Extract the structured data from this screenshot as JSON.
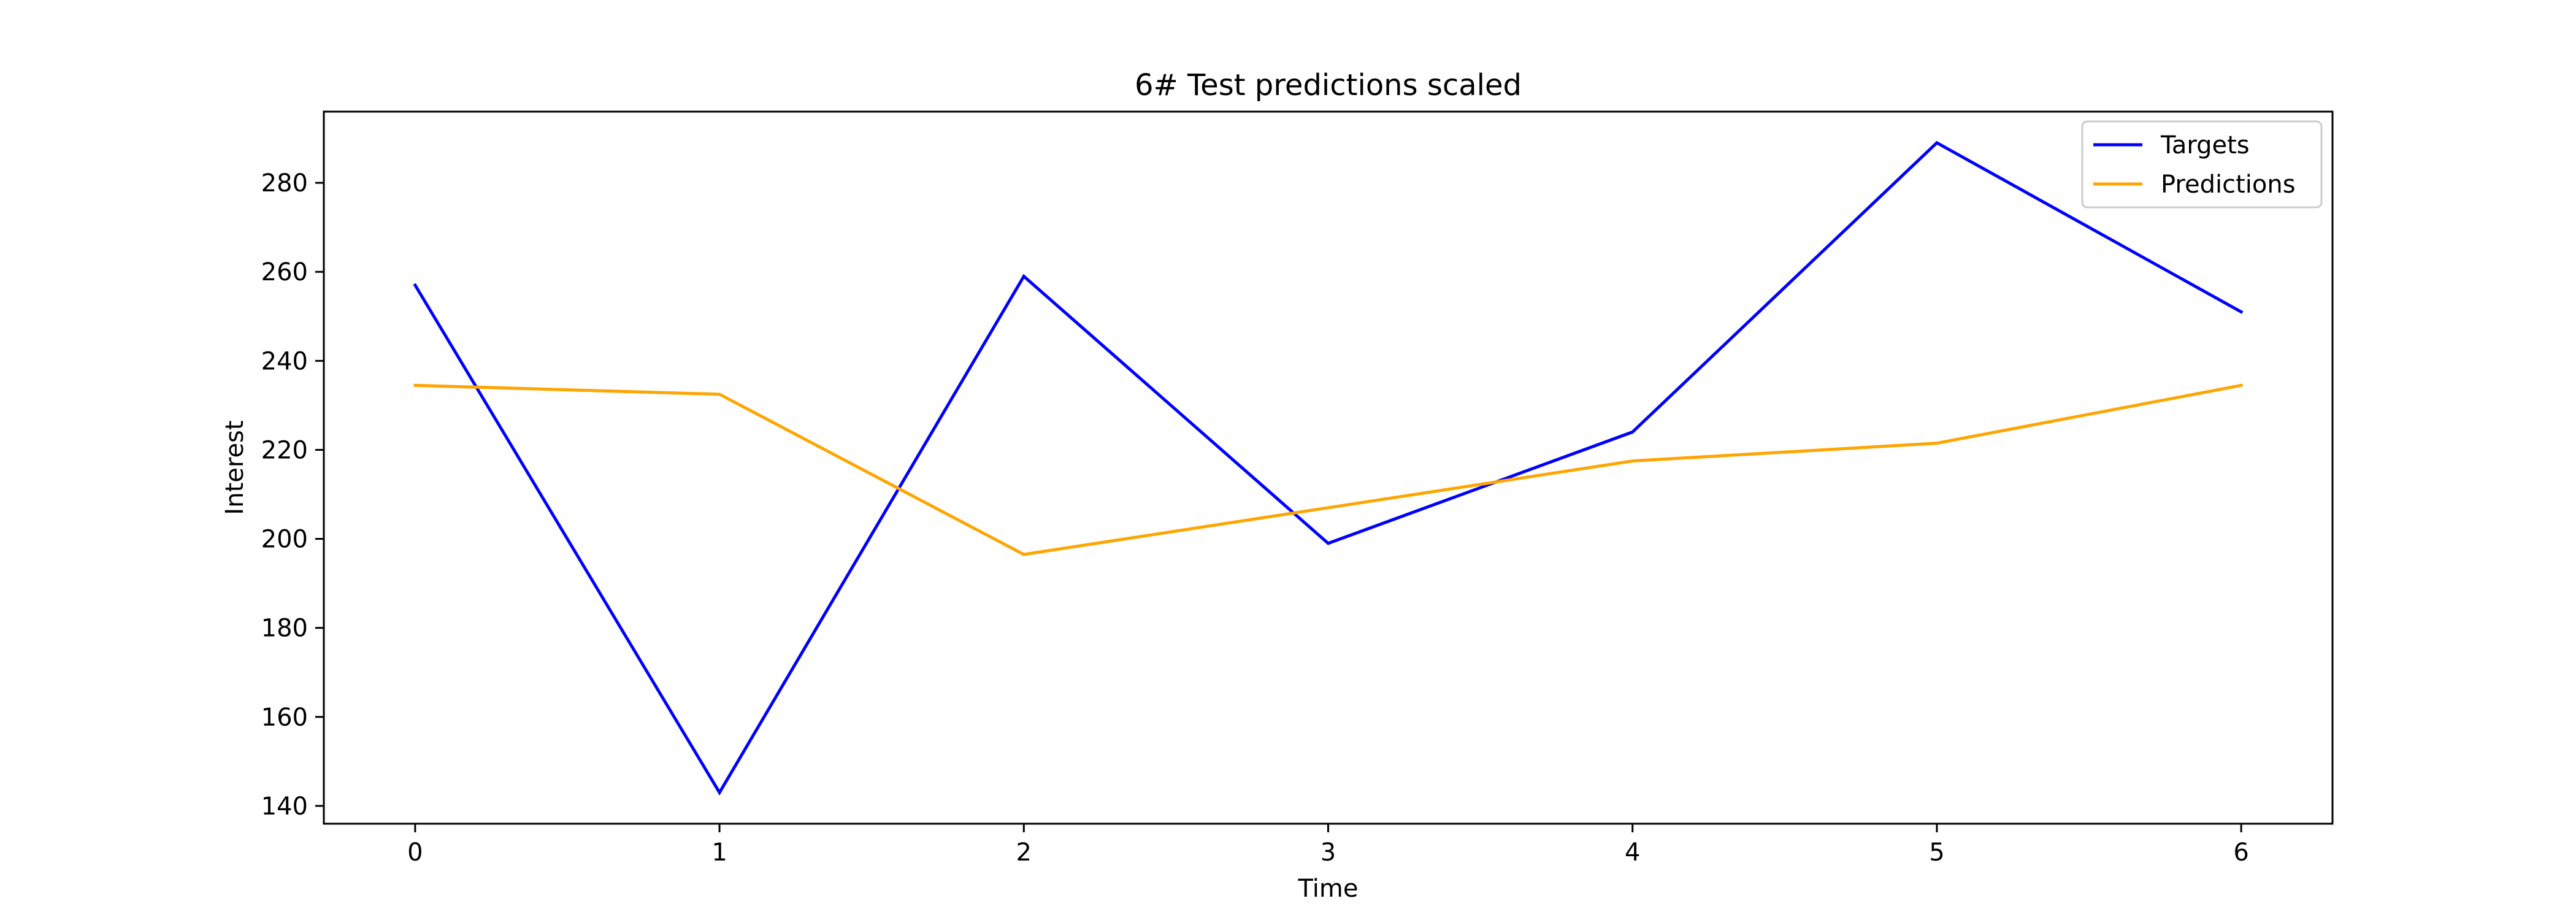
{
  "chart_data": {
    "type": "line",
    "title": "6# Test predictions scaled",
    "xlabel": "Time",
    "ylabel": "Interest",
    "x": [
      0,
      1,
      2,
      3,
      4,
      5,
      6
    ],
    "xticks": [
      "0",
      "1",
      "2",
      "3",
      "4",
      "5",
      "6"
    ],
    "xlim": [
      -0.3,
      6.3
    ],
    "yticks": [
      "140",
      "160",
      "180",
      "200",
      "220",
      "240",
      "260",
      "280"
    ],
    "ytick_values": [
      140,
      160,
      180,
      200,
      220,
      240,
      260,
      280
    ],
    "ylim": [
      136,
      296
    ],
    "grid": false,
    "legend_position": "top-right",
    "series": [
      {
        "name": "Targets",
        "color": "#0000ff",
        "values": [
          257,
          143,
          259,
          199,
          224,
          289,
          251
        ]
      },
      {
        "name": "Predictions",
        "color": "#ffa500",
        "values": [
          234.5,
          232.5,
          196.5,
          207,
          217.5,
          221.5,
          234.5
        ]
      }
    ]
  }
}
